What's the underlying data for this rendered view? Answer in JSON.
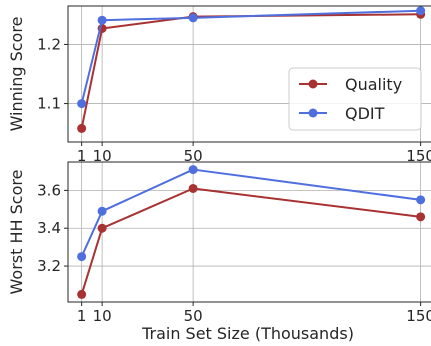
{
  "chart_data": [
    {
      "type": "line",
      "ylabel": "Winning Score",
      "xlabel": "",
      "x": [
        1,
        10,
        50,
        150
      ],
      "x_ticks": [
        1,
        10,
        50,
        150
      ],
      "x_tick_labels": [
        "1",
        "10",
        "50",
        "150"
      ],
      "xlim": [
        -5,
        155
      ],
      "y_ticks": [
        1.1,
        1.2
      ],
      "y_tick_labels": [
        "1.1",
        "1.2"
      ],
      "ylim": [
        1.035,
        1.265
      ],
      "grid": true,
      "legend": "center-right",
      "series": [
        {
          "name": "Quality",
          "color": "#a83232",
          "values": [
            1.058,
            1.227,
            1.247,
            1.251
          ]
        },
        {
          "name": "QDIT",
          "color": "#4f6fdf",
          "values": [
            1.1,
            1.241,
            1.245,
            1.257
          ]
        }
      ]
    },
    {
      "type": "line",
      "ylabel": "Worst HH Score",
      "xlabel": "Train Set Size (Thousands)",
      "x": [
        1,
        10,
        50,
        150
      ],
      "x_ticks": [
        1,
        10,
        50,
        150
      ],
      "x_tick_labels": [
        "1",
        "10",
        "50",
        "150"
      ],
      "xlim": [
        -5,
        155
      ],
      "y_ticks": [
        3.2,
        3.4,
        3.6
      ],
      "y_tick_labels": [
        "3.2",
        "3.4",
        "3.6"
      ],
      "ylim": [
        3.01,
        3.75
      ],
      "grid": true,
      "legend": "none",
      "series": [
        {
          "name": "Quality",
          "color": "#a83232",
          "values": [
            3.05,
            3.4,
            3.61,
            3.46
          ]
        },
        {
          "name": "QDIT",
          "color": "#4f6fdf",
          "values": [
            3.25,
            3.49,
            3.71,
            3.55
          ]
        }
      ]
    }
  ]
}
